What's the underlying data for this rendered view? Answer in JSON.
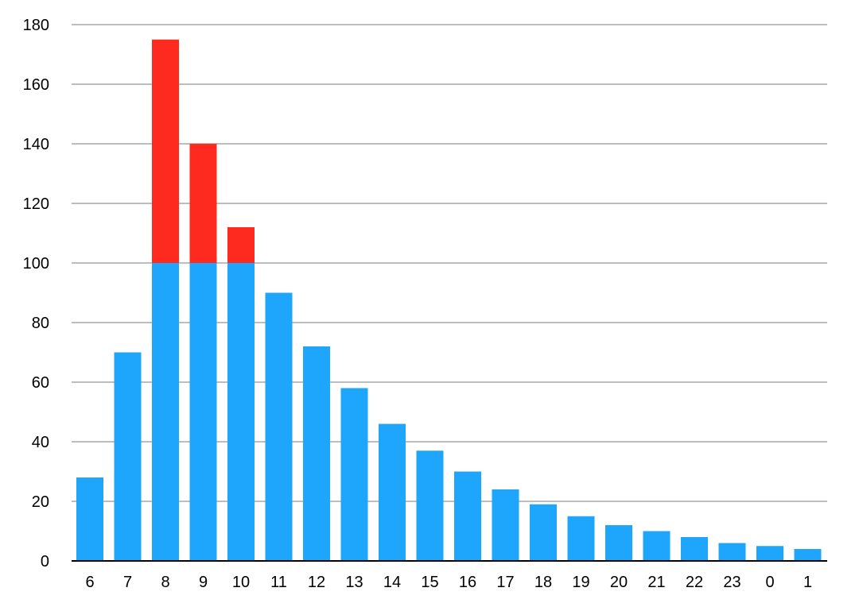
{
  "chart_data": {
    "type": "bar",
    "stacked": true,
    "title": "",
    "xlabel": "",
    "ylabel": "",
    "ylim": [
      0,
      180
    ],
    "yticks": [
      0,
      20,
      40,
      60,
      80,
      100,
      120,
      140,
      160,
      180
    ],
    "grid": true,
    "legend": "none",
    "categories": [
      "6",
      "7",
      "8",
      "9",
      "10",
      "11",
      "12",
      "13",
      "14",
      "15",
      "16",
      "17",
      "18",
      "19",
      "20",
      "21",
      "22",
      "23",
      "0",
      "1"
    ],
    "series": [
      {
        "color": "#1ea5fc",
        "values": [
          28,
          70,
          100,
          100,
          100,
          90,
          72,
          58,
          46,
          37,
          30,
          24,
          19,
          15,
          12,
          10,
          8,
          6,
          5,
          4
        ]
      },
      {
        "color": "#ff2a1f",
        "values": [
          0,
          0,
          75,
          40,
          12,
          0,
          0,
          0,
          0,
          0,
          0,
          0,
          0,
          0,
          0,
          0,
          0,
          0,
          0,
          0
        ]
      }
    ]
  }
}
